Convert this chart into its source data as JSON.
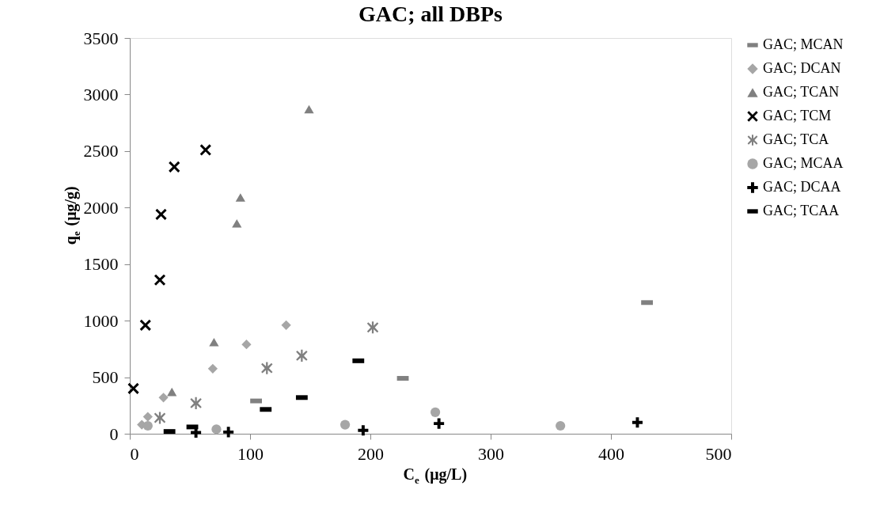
{
  "chart_data": {
    "type": "scatter",
    "title": "GAC; all DBPs",
    "xlabel": "C$_{e}$ (μg/L)",
    "ylabel": "q$_{e}$ (μg/g)",
    "xlim": [
      0,
      500
    ],
    "xticks": [
      0,
      100,
      200,
      300,
      400,
      500
    ],
    "ylim": [
      0,
      3500
    ],
    "yticks": [
      0,
      500,
      1000,
      1500,
      2000,
      2500,
      3000,
      3500
    ],
    "grid": false,
    "legend": "right",
    "series": [
      {
        "name": "GAC; MCAN",
        "color": "#808080",
        "marker": "square",
        "x": [
          105,
          227,
          430
        ],
        "values": [
          290,
          490,
          1160
        ]
      },
      {
        "name": "GAC; DCAN",
        "color": "#a6a6a6",
        "marker": "diamond",
        "x": [
          10,
          15,
          28,
          69,
          97,
          130
        ],
        "values": [
          80,
          150,
          320,
          575,
          790,
          960
        ]
      },
      {
        "name": "GAC; TCAN",
        "color": "#808080",
        "marker": "triangle",
        "x": [
          35,
          70,
          89,
          92,
          149
        ],
        "values": [
          370,
          810,
          1860,
          2090,
          2870
        ]
      },
      {
        "name": "GAC; TCM",
        "color": "#000000",
        "marker": "x",
        "x": [
          3,
          13,
          25,
          26,
          37,
          63
        ],
        "values": [
          400,
          960,
          1360,
          1940,
          2360,
          2510
        ]
      },
      {
        "name": "GAC; TCA",
        "color": "#808080",
        "marker": "asterisk",
        "x": [
          25,
          55,
          114,
          143,
          202
        ],
        "values": [
          140,
          270,
          580,
          690,
          940
        ]
      },
      {
        "name": "GAC; MCAA",
        "color": "#a6a6a6",
        "marker": "circle",
        "x": [
          15,
          72,
          179,
          254,
          358
        ],
        "values": [
          70,
          40,
          80,
          190,
          70
        ]
      },
      {
        "name": "GAC; DCAA",
        "color": "#000000",
        "marker": "cross",
        "x": [
          55,
          82,
          194,
          257,
          422
        ],
        "values": [
          10,
          15,
          30,
          90,
          100
        ]
      },
      {
        "name": "GAC; TCAA",
        "color": "#000000",
        "marker": "square",
        "x": [
          33,
          52,
          113,
          143,
          190
        ],
        "values": [
          20,
          60,
          215,
          320,
          645
        ]
      }
    ]
  }
}
